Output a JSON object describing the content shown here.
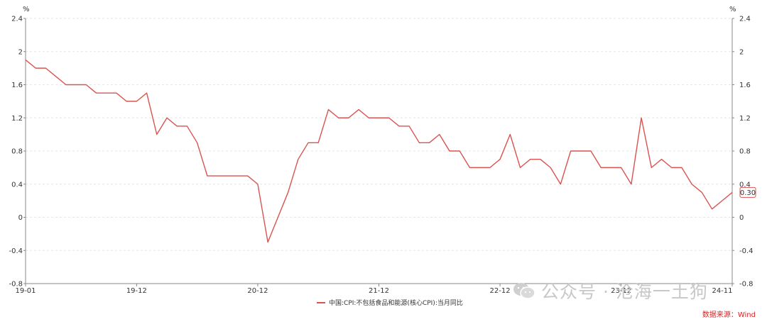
{
  "chart_data": {
    "type": "line",
    "title": "",
    "xlabel": "",
    "ylabel": "%",
    "ylabel_right": "%",
    "ylim": [
      -0.8,
      2.4
    ],
    "yticks": [
      2.4,
      2,
      1.6,
      1.2,
      0.8,
      0.4,
      0,
      -0.4,
      -0.8
    ],
    "ytick_labels": [
      "2.4",
      "2",
      "1.6",
      "1.2",
      "0.8",
      "0.4",
      "0",
      "-0.4",
      "-0.8"
    ],
    "x": [
      "2019-01",
      "2019-02",
      "2019-03",
      "2019-04",
      "2019-05",
      "2019-06",
      "2019-07",
      "2019-08",
      "2019-09",
      "2019-10",
      "2019-11",
      "2019-12",
      "2020-01",
      "2020-02",
      "2020-03",
      "2020-04",
      "2020-05",
      "2020-06",
      "2020-07",
      "2020-08",
      "2020-09",
      "2020-10",
      "2020-11",
      "2020-12",
      "2021-01",
      "2021-02",
      "2021-03",
      "2021-04",
      "2021-05",
      "2021-06",
      "2021-07",
      "2021-08",
      "2021-09",
      "2021-10",
      "2021-11",
      "2021-12",
      "2022-01",
      "2022-02",
      "2022-03",
      "2022-04",
      "2022-05",
      "2022-06",
      "2022-07",
      "2022-08",
      "2022-09",
      "2022-10",
      "2022-11",
      "2022-12",
      "2023-01",
      "2023-02",
      "2023-03",
      "2023-04",
      "2023-05",
      "2023-06",
      "2023-07",
      "2023-08",
      "2023-09",
      "2023-10",
      "2023-11",
      "2023-12",
      "2024-01",
      "2024-02",
      "2024-03",
      "2024-04",
      "2024-05",
      "2024-06",
      "2024-07",
      "2024-08",
      "2024-09",
      "2024-10",
      "2024-11"
    ],
    "xtick_labels": [
      {
        "at": "2019-01",
        "label": "19-01"
      },
      {
        "at": "2019-12",
        "label": "19-12"
      },
      {
        "at": "2020-12",
        "label": "20-12"
      },
      {
        "at": "2021-12",
        "label": "21-12"
      },
      {
        "at": "2022-12",
        "label": "22-12"
      },
      {
        "at": "2023-12",
        "label": "23-12"
      },
      {
        "at": "2024-11",
        "label": "24-11"
      }
    ],
    "series": [
      {
        "name": "中国:CPI:不包括食品和能源(核心CPI):当月同比",
        "color": "#d9534f",
        "values": [
          1.9,
          1.8,
          1.8,
          1.7,
          1.6,
          1.6,
          1.6,
          1.5,
          1.5,
          1.5,
          1.4,
          1.4,
          1.5,
          1.0,
          1.2,
          1.1,
          1.1,
          0.9,
          0.5,
          0.5,
          0.5,
          0.5,
          0.5,
          0.4,
          -0.3,
          0.0,
          0.3,
          0.7,
          0.9,
          0.9,
          1.3,
          1.2,
          1.2,
          1.3,
          1.2,
          1.2,
          1.2,
          1.1,
          1.1,
          0.9,
          0.9,
          1.0,
          0.8,
          0.8,
          0.6,
          0.6,
          0.6,
          0.7,
          1.0,
          0.6,
          0.7,
          0.7,
          0.6,
          0.4,
          0.8,
          0.8,
          0.8,
          0.6,
          0.6,
          0.6,
          0.4,
          1.2,
          0.6,
          0.7,
          0.6,
          0.6,
          0.4,
          0.3,
          0.1,
          0.2,
          0.3
        ]
      }
    ],
    "last_value_label": "0.30",
    "grid": true,
    "legend_position": "bottom-center"
  },
  "legend_label": "中国:CPI:不包括食品和能源(核心CPI):当月同比",
  "source_label": "数据来源：Wind",
  "watermark_text": "公众号 · 沧海一土狗"
}
